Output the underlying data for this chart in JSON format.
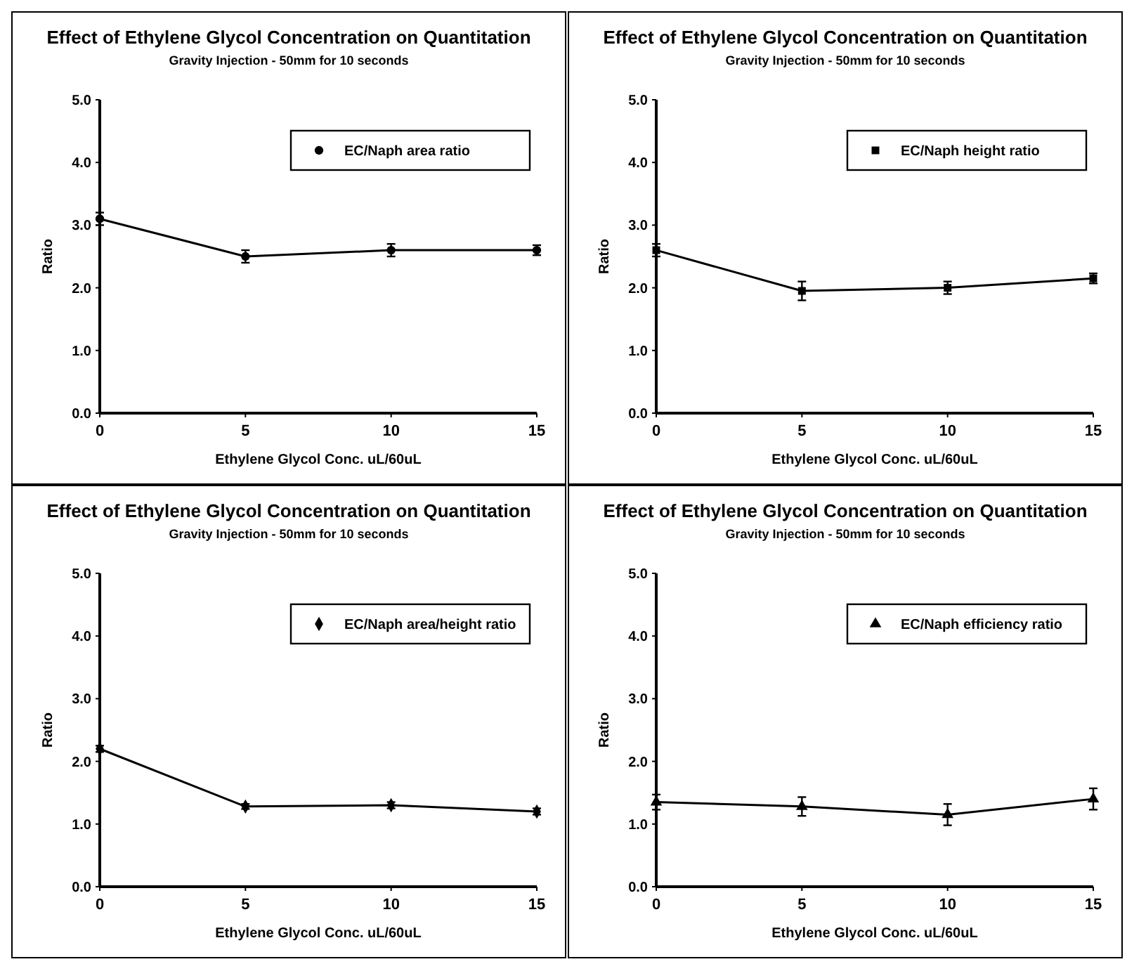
{
  "chart_data": [
    {
      "type": "line",
      "title": "Effect of Ethylene Glycol Concentration on Quantitation",
      "subtitle": "Gravity Injection - 50mm for 10 seconds",
      "xlabel": "Ethylene Glycol Conc.  uL/60uL",
      "ylabel": "Ratio",
      "x": [
        0,
        5,
        10,
        15
      ],
      "xlim": [
        0,
        15
      ],
      "xticks": [
        0,
        5,
        10,
        15
      ],
      "ylim": [
        0,
        5
      ],
      "yticks": [
        {
          "value": 0,
          "label": "0.0"
        },
        {
          "value": 1,
          "label": "1.0"
        },
        {
          "value": 2,
          "label": "2.0"
        },
        {
          "value": 3,
          "label": "3.0"
        },
        {
          "value": 4,
          "label": "4.0"
        },
        {
          "value": 5,
          "label": "5.0"
        }
      ],
      "legend": "top right",
      "marker": "circle",
      "line_style": "solid",
      "series": [
        {
          "name": "EC/Naph area ratio",
          "color": "#000000",
          "values": [
            3.1,
            2.5,
            2.6,
            2.6
          ],
          "errors": [
            0.1,
            0.1,
            0.1,
            0.08
          ]
        }
      ]
    },
    {
      "type": "line",
      "title": "Effect of Ethylene Glycol Concentration on Quantitation",
      "subtitle": "Gravity Injection - 50mm for 10 seconds",
      "xlabel": "Ethylene Glycol Conc.  uL/60uL",
      "ylabel": "Ratio",
      "x": [
        0,
        5,
        10,
        15
      ],
      "xlim": [
        0,
        15
      ],
      "xticks": [
        0,
        5,
        10,
        15
      ],
      "ylim": [
        0,
        5
      ],
      "yticks": [
        {
          "value": 0,
          "label": "0.0"
        },
        {
          "value": 1,
          "label": "1.0"
        },
        {
          "value": 2,
          "label": "2.0"
        },
        {
          "value": 3,
          "label": "3.0"
        },
        {
          "value": 4,
          "label": "4.0"
        },
        {
          "value": 5,
          "label": "5.0"
        }
      ],
      "legend": "top right",
      "marker": "square",
      "line_style": "solid",
      "series": [
        {
          "name": "EC/Naph height ratio",
          "color": "#000000",
          "values": [
            2.6,
            1.95,
            2.0,
            2.15
          ],
          "errors": [
            0.1,
            0.15,
            0.1,
            0.08
          ]
        }
      ]
    },
    {
      "type": "line",
      "title": "Effect of Ethylene Glycol Concentration on Quantitation",
      "subtitle": "Gravity Injection - 50mm for 10 seconds",
      "xlabel": "Ethylene Glycol Conc.  uL/60uL",
      "ylabel": "Ratio",
      "x": [
        0,
        5,
        10,
        15
      ],
      "xlim": [
        0,
        15
      ],
      "xticks": [
        0,
        5,
        10,
        15
      ],
      "ylim": [
        0,
        5
      ],
      "yticks": [
        {
          "value": 0,
          "label": "0.0"
        },
        {
          "value": 1,
          "label": "1.0"
        },
        {
          "value": 2,
          "label": "2.0"
        },
        {
          "value": 3,
          "label": "3.0"
        },
        {
          "value": 4,
          "label": "4.0"
        },
        {
          "value": 5,
          "label": "5.0"
        }
      ],
      "legend": "top right",
      "marker": "diamond",
      "line_style": "solid",
      "series": [
        {
          "name": "EC/Naph  area/height ratio",
          "color": "#000000",
          "values": [
            2.2,
            1.28,
            1.3,
            1.2
          ],
          "errors": [
            0.05,
            0.04,
            0.05,
            0.05
          ]
        }
      ]
    },
    {
      "type": "line",
      "title": "Effect of Ethylene Glycol Concentration on Quantitation",
      "subtitle": "Gravity Injection - 50mm for 10 seconds",
      "xlabel": "Ethylene Glycol Conc.  uL/60uL",
      "ylabel": "Ratio",
      "x": [
        0,
        5,
        10,
        15
      ],
      "xlim": [
        0,
        15
      ],
      "xticks": [
        0,
        5,
        10,
        15
      ],
      "ylim": [
        0,
        5
      ],
      "yticks": [
        {
          "value": 0,
          "label": "0.0"
        },
        {
          "value": 1,
          "label": "1.0"
        },
        {
          "value": 2,
          "label": "2.0"
        },
        {
          "value": 3,
          "label": "3.0"
        },
        {
          "value": 4,
          "label": "4.0"
        },
        {
          "value": 5,
          "label": "5.0"
        }
      ],
      "legend": "top right",
      "marker": "triangle",
      "line_style": "solid",
      "series": [
        {
          "name": "EC/Naph efficiency ratio",
          "color": "#000000",
          "values": [
            1.35,
            1.28,
            1.15,
            1.4
          ],
          "errors": [
            0.12,
            0.15,
            0.17,
            0.17
          ]
        }
      ]
    }
  ]
}
